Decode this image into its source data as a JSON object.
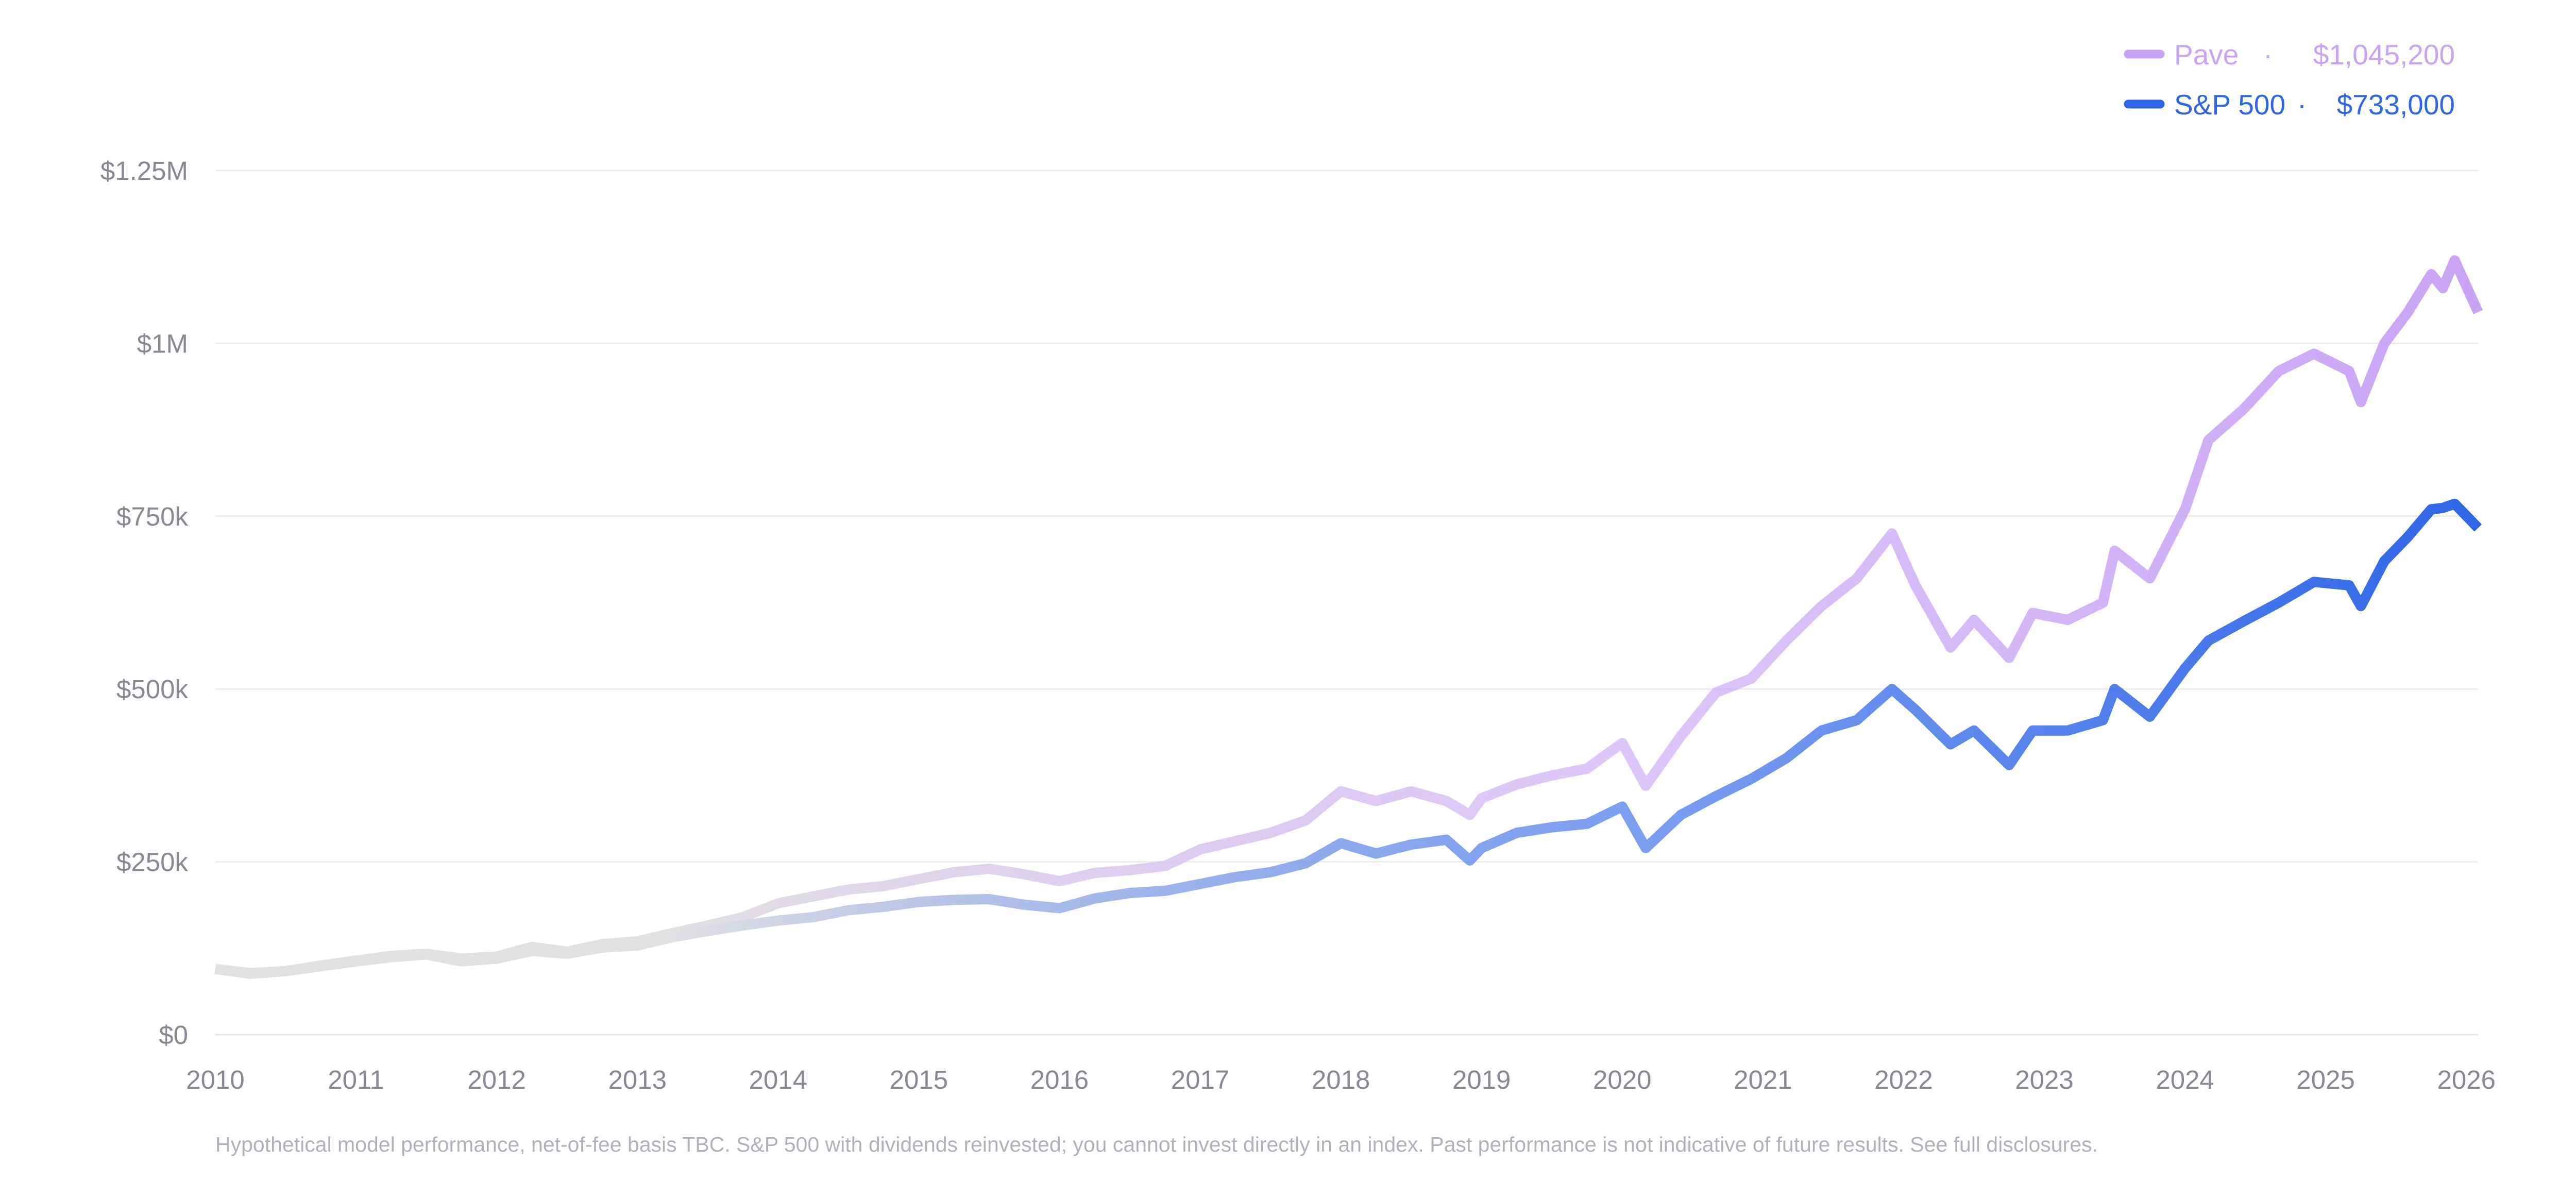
{
  "chart_data": {
    "type": "line",
    "y_unit": "USD",
    "ylim": [
      0,
      1250000
    ],
    "y_ticks": [
      {
        "value": 0,
        "label": "$0"
      },
      {
        "value": 250000,
        "label": "$250k"
      },
      {
        "value": 500000,
        "label": "$500k"
      },
      {
        "value": 750000,
        "label": "$750k"
      },
      {
        "value": 1000000,
        "label": "$1M"
      },
      {
        "value": 1250000,
        "label": "$1.25M"
      }
    ],
    "x_ticks": [
      "2010",
      "2011",
      "2012",
      "2013",
      "2014",
      "2015",
      "2016",
      "2017",
      "2018",
      "2019",
      "2020",
      "2021",
      "2022",
      "2023",
      "2024",
      "2025",
      "2026"
    ],
    "grid": true,
    "legend_position": "top-right",
    "series": [
      {
        "name": "Pave",
        "legend_value": "$1,045,200",
        "color": "#c9a4f5",
        "fade_start_color": "#e2e0e3",
        "points": [
          [
            "2010-01",
            95000
          ],
          [
            "2010-04",
            88000
          ],
          [
            "2010-07",
            92000
          ],
          [
            "2010-10",
            100000
          ],
          [
            "2011-01",
            107000
          ],
          [
            "2011-04",
            114000
          ],
          [
            "2011-07",
            117000
          ],
          [
            "2011-10",
            110000
          ],
          [
            "2012-01",
            113000
          ],
          [
            "2012-04",
            127000
          ],
          [
            "2012-07",
            120000
          ],
          [
            "2012-10",
            131000
          ],
          [
            "2013-01",
            135000
          ],
          [
            "2013-04",
            147000
          ],
          [
            "2013-07",
            158000
          ],
          [
            "2013-10",
            170000
          ],
          [
            "2014-01",
            190000
          ],
          [
            "2014-04",
            200000
          ],
          [
            "2014-07",
            210000
          ],
          [
            "2014-10",
            215000
          ],
          [
            "2015-01",
            225000
          ],
          [
            "2015-04",
            235000
          ],
          [
            "2015-07",
            240000
          ],
          [
            "2015-10",
            232000
          ],
          [
            "2016-01",
            222000
          ],
          [
            "2016-04",
            234000
          ],
          [
            "2016-07",
            238000
          ],
          [
            "2016-10",
            244000
          ],
          [
            "2017-01",
            268000
          ],
          [
            "2017-04",
            280000
          ],
          [
            "2017-07",
            292000
          ],
          [
            "2017-10",
            310000
          ],
          [
            "2018-01",
            352000
          ],
          [
            "2018-04",
            338000
          ],
          [
            "2018-07",
            352000
          ],
          [
            "2018-10",
            338000
          ],
          [
            "2018-12",
            318000
          ],
          [
            "2019-01",
            342000
          ],
          [
            "2019-04",
            362000
          ],
          [
            "2019-07",
            375000
          ],
          [
            "2019-10",
            385000
          ],
          [
            "2020-01",
            422000
          ],
          [
            "2020-03",
            360000
          ],
          [
            "2020-06",
            432000
          ],
          [
            "2020-09",
            495000
          ],
          [
            "2020-12",
            515000
          ],
          [
            "2021-03",
            570000
          ],
          [
            "2021-06",
            620000
          ],
          [
            "2021-09",
            660000
          ],
          [
            "2021-12",
            725000
          ],
          [
            "2022-02",
            650000
          ],
          [
            "2022-05",
            560000
          ],
          [
            "2022-07",
            600000
          ],
          [
            "2022-10",
            545000
          ],
          [
            "2022-12",
            610000
          ],
          [
            "2023-03",
            600000
          ],
          [
            "2023-06",
            625000
          ],
          [
            "2023-07",
            700000
          ],
          [
            "2023-10",
            660000
          ],
          [
            "2024-01",
            760000
          ],
          [
            "2024-03",
            860000
          ],
          [
            "2024-06",
            905000
          ],
          [
            "2024-09",
            960000
          ],
          [
            "2024-12",
            985000
          ],
          [
            "2025-03",
            960000
          ],
          [
            "2025-04",
            915000
          ],
          [
            "2025-06",
            1000000
          ],
          [
            "2025-08",
            1045000
          ],
          [
            "2025-10",
            1100000
          ],
          [
            "2025-11",
            1080000
          ],
          [
            "2025-12",
            1120000
          ],
          [
            "2026-02",
            1045200
          ]
        ]
      },
      {
        "name": "S&P 500",
        "legend_value": "$733,000",
        "color": "#2f65e6",
        "fade_start_color": "#e2e0e3",
        "points": [
          [
            "2010-01",
            95000
          ],
          [
            "2010-04",
            89000
          ],
          [
            "2010-07",
            92000
          ],
          [
            "2010-10",
            99000
          ],
          [
            "2011-01",
            106000
          ],
          [
            "2011-04",
            112000
          ],
          [
            "2011-07",
            116000
          ],
          [
            "2011-10",
            106000
          ],
          [
            "2012-01",
            110000
          ],
          [
            "2012-04",
            121000
          ],
          [
            "2012-07",
            117000
          ],
          [
            "2012-10",
            126000
          ],
          [
            "2013-01",
            129000
          ],
          [
            "2013-04",
            141000
          ],
          [
            "2013-07",
            150000
          ],
          [
            "2013-10",
            158000
          ],
          [
            "2014-01",
            165000
          ],
          [
            "2014-04",
            170000
          ],
          [
            "2014-07",
            180000
          ],
          [
            "2014-10",
            185000
          ],
          [
            "2015-01",
            192000
          ],
          [
            "2015-04",
            195000
          ],
          [
            "2015-07",
            196000
          ],
          [
            "2015-10",
            188000
          ],
          [
            "2016-01",
            183000
          ],
          [
            "2016-04",
            197000
          ],
          [
            "2016-07",
            205000
          ],
          [
            "2016-10",
            208000
          ],
          [
            "2017-01",
            218000
          ],
          [
            "2017-04",
            228000
          ],
          [
            "2017-07",
            235000
          ],
          [
            "2017-10",
            248000
          ],
          [
            "2018-01",
            277000
          ],
          [
            "2018-04",
            262000
          ],
          [
            "2018-07",
            275000
          ],
          [
            "2018-10",
            282000
          ],
          [
            "2018-12",
            252000
          ],
          [
            "2019-01",
            270000
          ],
          [
            "2019-04",
            292000
          ],
          [
            "2019-07",
            300000
          ],
          [
            "2019-10",
            305000
          ],
          [
            "2020-01",
            330000
          ],
          [
            "2020-03",
            270000
          ],
          [
            "2020-06",
            318000
          ],
          [
            "2020-09",
            345000
          ],
          [
            "2020-12",
            370000
          ],
          [
            "2021-03",
            400000
          ],
          [
            "2021-06",
            440000
          ],
          [
            "2021-09",
            455000
          ],
          [
            "2021-12",
            500000
          ],
          [
            "2022-02",
            470000
          ],
          [
            "2022-05",
            420000
          ],
          [
            "2022-07",
            440000
          ],
          [
            "2022-10",
            390000
          ],
          [
            "2022-12",
            440000
          ],
          [
            "2023-03",
            440000
          ],
          [
            "2023-06",
            455000
          ],
          [
            "2023-07",
            500000
          ],
          [
            "2023-10",
            460000
          ],
          [
            "2024-01",
            530000
          ],
          [
            "2024-03",
            570000
          ],
          [
            "2024-06",
            598000
          ],
          [
            "2024-09",
            625000
          ],
          [
            "2024-12",
            655000
          ],
          [
            "2025-03",
            650000
          ],
          [
            "2025-04",
            620000
          ],
          [
            "2025-06",
            685000
          ],
          [
            "2025-08",
            720000
          ],
          [
            "2025-10",
            760000
          ],
          [
            "2025-11",
            762000
          ],
          [
            "2025-12",
            768000
          ],
          [
            "2026-02",
            733000
          ]
        ]
      }
    ]
  },
  "footnote": "Hypothetical model performance, net-of-fee basis TBC. S&P 500 with dividends reinvested; you cannot invest directly in an index. Past performance is not indicative of future results. See full disclosures."
}
